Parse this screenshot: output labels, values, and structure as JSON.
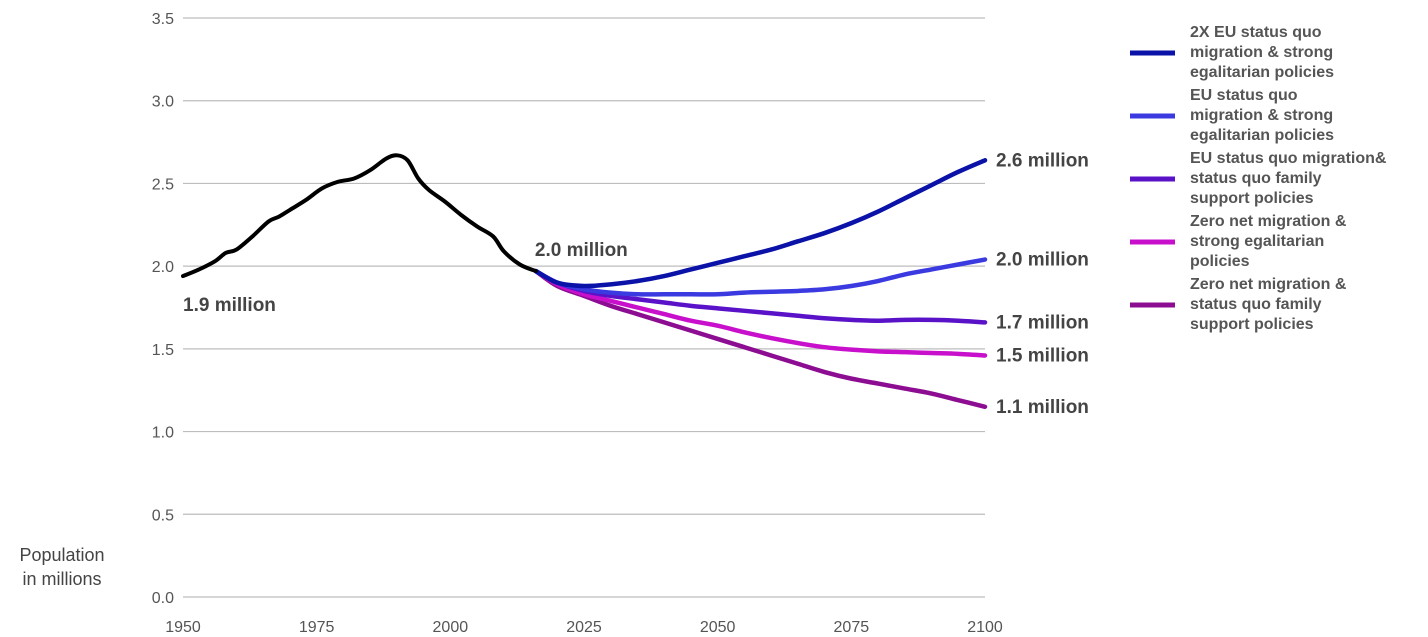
{
  "chart_data": {
    "type": "line",
    "ylabel": "Population\nin millions",
    "xlim": [
      1950,
      2100
    ],
    "ylim": [
      0,
      3.5
    ],
    "x_ticks": [
      1950,
      1975,
      2000,
      2025,
      2050,
      2075,
      2100
    ],
    "y_ticks": [
      "0.0",
      "0.5",
      "1.0",
      "1.5",
      "2.0",
      "2.5",
      "3.0",
      "3.5"
    ],
    "grid": true,
    "legend_position": "right",
    "historical": {
      "color": "#000000",
      "x": [
        1950,
        1953,
        1956,
        1958,
        1960,
        1963,
        1966,
        1968,
        1970,
        1973,
        1976,
        1979,
        1982,
        1985,
        1988,
        1990,
        1992,
        1994,
        1996,
        1999,
        2002,
        2005,
        2008,
        2010,
        2013,
        2016
      ],
      "y": [
        1.94,
        1.98,
        2.03,
        2.08,
        2.1,
        2.18,
        2.27,
        2.3,
        2.34,
        2.4,
        2.47,
        2.51,
        2.53,
        2.58,
        2.65,
        2.67,
        2.64,
        2.53,
        2.46,
        2.39,
        2.31,
        2.24,
        2.18,
        2.09,
        2.01,
        1.97
      ],
      "labels": [
        {
          "x": 1950,
          "y": 1.94,
          "text": "1.9 million"
        },
        {
          "x": 2016,
          "y": 1.97,
          "text": "2.0 million"
        }
      ]
    },
    "series": [
      {
        "name": "2X EU status quo migration & strong egalitarian policies",
        "legend_lines": [
          "2X EU status quo",
          "migration & strong",
          "egalitarian policies"
        ],
        "color": "#0a12a8",
        "x": [
          2016,
          2020,
          2025,
          2030,
          2035,
          2040,
          2045,
          2050,
          2055,
          2060,
          2065,
          2070,
          2075,
          2080,
          2085,
          2090,
          2095,
          2100
        ],
        "y": [
          1.97,
          1.9,
          1.88,
          1.89,
          1.91,
          1.94,
          1.98,
          2.02,
          2.06,
          2.1,
          2.15,
          2.2,
          2.26,
          2.33,
          2.41,
          2.49,
          2.57,
          2.64
        ],
        "end_label": "2.6 million"
      },
      {
        "name": "EU status quo migration & strong egalitarian policies",
        "legend_lines": [
          "EU status quo",
          "migration & strong",
          "egalitarian policies"
        ],
        "color": "#3a3ae0",
        "x": [
          2016,
          2020,
          2025,
          2030,
          2035,
          2040,
          2045,
          2050,
          2055,
          2060,
          2065,
          2070,
          2075,
          2080,
          2085,
          2090,
          2095,
          2100
        ],
        "y": [
          1.97,
          1.9,
          1.86,
          1.84,
          1.83,
          1.83,
          1.83,
          1.83,
          1.84,
          1.845,
          1.85,
          1.86,
          1.88,
          1.91,
          1.95,
          1.98,
          2.01,
          2.04
        ],
        "end_label": "2.0 million"
      },
      {
        "name": "EU status quo migration& status quo family support policies",
        "legend_lines": [
          "EU status quo migration&",
          "status quo family",
          "support policies"
        ],
        "color": "#5a12c8",
        "x": [
          2016,
          2020,
          2025,
          2030,
          2035,
          2040,
          2045,
          2050,
          2055,
          2060,
          2065,
          2070,
          2075,
          2080,
          2085,
          2090,
          2095,
          2100
        ],
        "y": [
          1.97,
          1.9,
          1.85,
          1.82,
          1.8,
          1.78,
          1.76,
          1.745,
          1.73,
          1.715,
          1.7,
          1.685,
          1.675,
          1.67,
          1.675,
          1.675,
          1.67,
          1.66
        ],
        "end_label": "1.7 million"
      },
      {
        "name": "Zero net migration & strong egalitarian policies",
        "legend_lines": [
          "Zero net migration &",
          "strong egalitarian",
          "policies"
        ],
        "color": "#c810cc",
        "x": [
          2016,
          2020,
          2025,
          2030,
          2035,
          2040,
          2045,
          2050,
          2055,
          2060,
          2065,
          2070,
          2075,
          2080,
          2085,
          2090,
          2095,
          2100
        ],
        "y": [
          1.97,
          1.89,
          1.83,
          1.79,
          1.75,
          1.71,
          1.67,
          1.64,
          1.6,
          1.565,
          1.535,
          1.51,
          1.495,
          1.485,
          1.48,
          1.475,
          1.47,
          1.46
        ],
        "end_label": "1.5 million"
      },
      {
        "name": "Zero net migration & status quo family support policies",
        "legend_lines": [
          "Zero net migration &",
          "status quo family",
          "support policies"
        ],
        "color": "#8c0c92",
        "x": [
          2016,
          2020,
          2025,
          2030,
          2035,
          2040,
          2045,
          2050,
          2055,
          2060,
          2065,
          2070,
          2075,
          2080,
          2085,
          2090,
          2095,
          2100
        ],
        "y": [
          1.97,
          1.88,
          1.82,
          1.76,
          1.71,
          1.66,
          1.61,
          1.56,
          1.51,
          1.46,
          1.41,
          1.36,
          1.32,
          1.29,
          1.26,
          1.23,
          1.19,
          1.15
        ],
        "end_label": "1.1 million"
      }
    ]
  }
}
